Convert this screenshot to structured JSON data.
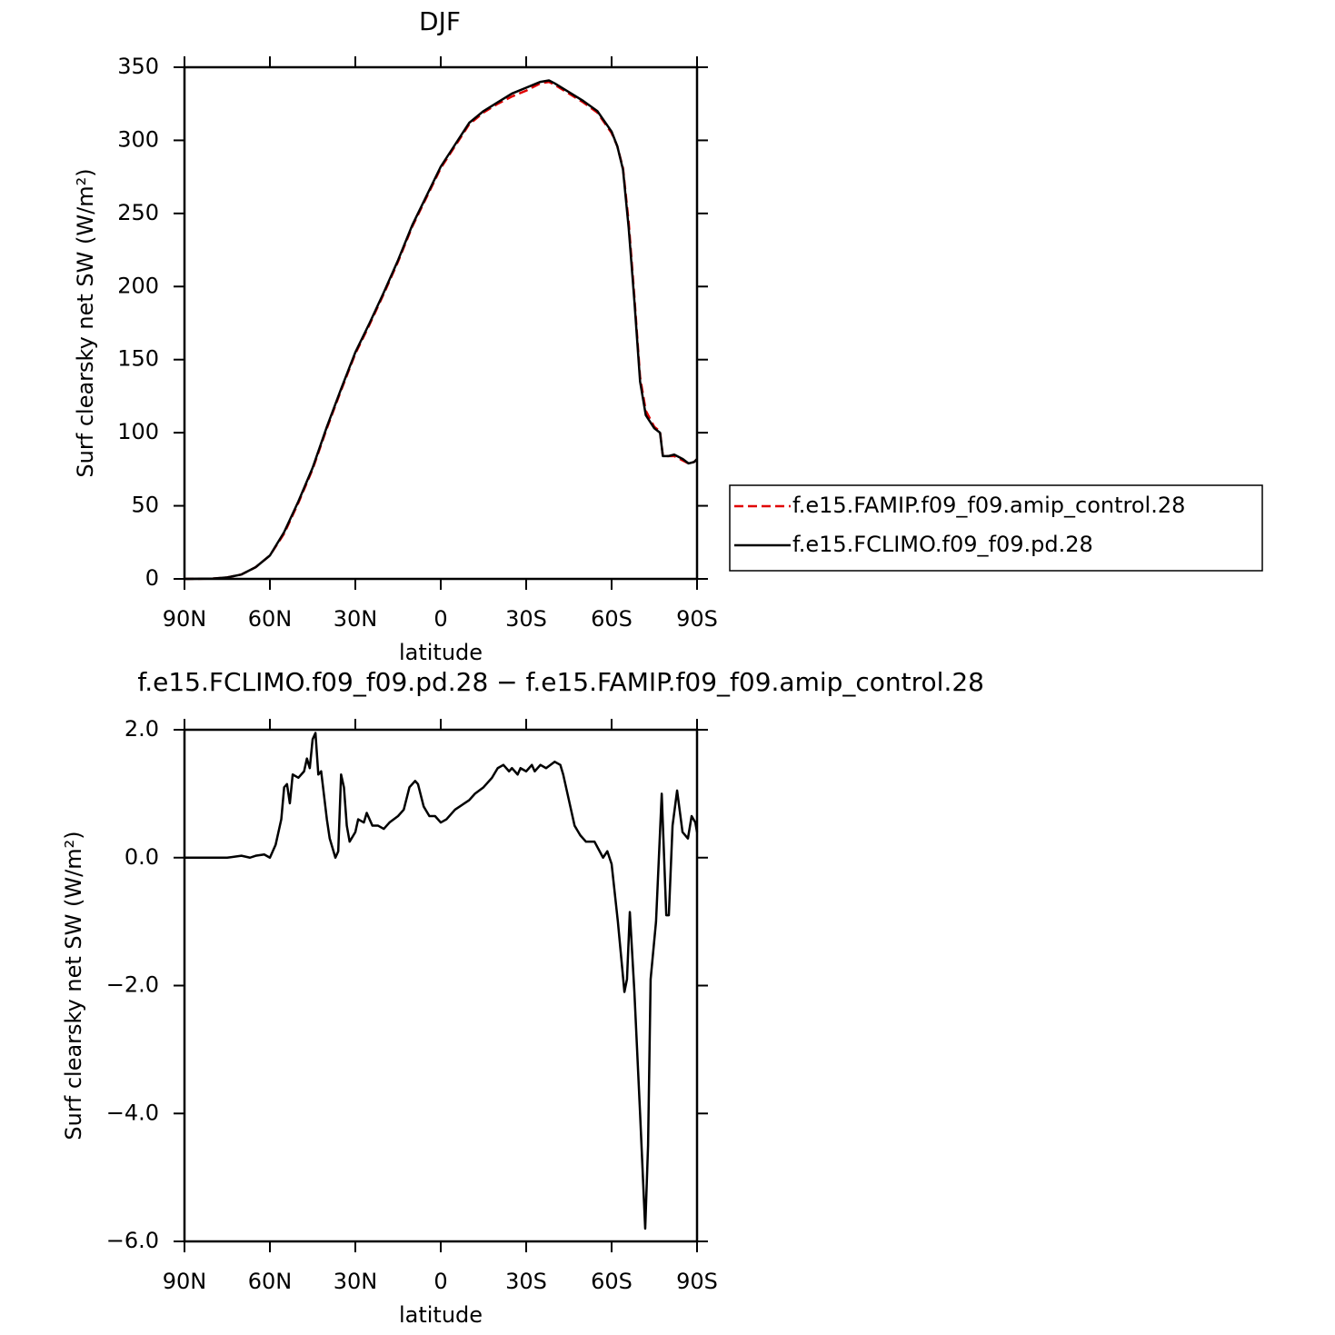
{
  "chart_data": [
    {
      "type": "line",
      "title": "DJF",
      "xlabel": "latitude",
      "ylabel": "Surf clearsky net SW (W/m²)",
      "x": [
        90,
        80,
        75,
        70,
        65,
        60,
        55,
        50,
        45,
        40,
        35,
        30,
        25,
        20,
        15,
        10,
        5,
        0,
        -5,
        -10,
        -15,
        -20,
        -25,
        -30,
        -35,
        -38,
        -40,
        -45,
        -50,
        -55,
        -60,
        -62,
        -64,
        -66,
        -68,
        -70,
        -72,
        -75,
        -77,
        -78,
        -80,
        -82,
        -85,
        -87,
        -89,
        -90
      ],
      "series": [
        {
          "name": "f.e15.FAMIP.f09_f09.amip_control.28",
          "color": "#e00000",
          "line_style": "dashed",
          "values": [
            0,
            0.2,
            1,
            3,
            8,
            16,
            31,
            52,
            75,
            103,
            129,
            154,
            174,
            195,
            217,
            241,
            261,
            281,
            296,
            311,
            319,
            325,
            330,
            334,
            339,
            340,
            338,
            332,
            326,
            319,
            305,
            296,
            281,
            244,
            193,
            138,
            115,
            104,
            101,
            84,
            84,
            84,
            81,
            79,
            80,
            82
          ]
        },
        {
          "name": "f.e15.FCLIMO.f09_f09.pd.28",
          "color": "#000000",
          "line_style": "solid",
          "values": [
            0,
            0.2,
            1,
            3,
            8,
            16,
            32,
            53,
            76,
            104,
            130,
            155,
            175,
            196,
            218,
            242,
            262,
            282,
            297,
            312,
            320,
            326,
            332,
            336,
            340,
            341,
            339,
            333,
            327,
            320,
            306,
            296,
            280,
            240,
            190,
            135,
            112,
            103,
            100,
            84,
            84,
            85,
            82,
            79,
            80,
            82
          ]
        }
      ],
      "xlim": [
        90,
        -90
      ],
      "xticks": [
        {
          "value": 90,
          "label": "90N"
        },
        {
          "value": 60,
          "label": "60N"
        },
        {
          "value": 30,
          "label": "30N"
        },
        0,
        {
          "value": -30,
          "label": "30S"
        },
        {
          "value": -60,
          "label": "60S"
        },
        {
          "value": -90,
          "label": "90S"
        }
      ],
      "ylim": [
        0,
        350
      ],
      "yticks": [
        0,
        50,
        100,
        150,
        200,
        250,
        300,
        350
      ],
      "legend": "right"
    },
    {
      "type": "line",
      "title": "f.e15.FCLIMO.f09_f09.pd.28 − f.e15.FAMIP.f09_f09.amip_control.28",
      "xlabel": "latitude",
      "ylabel": "Surf clearsky net SW (W/m²)",
      "x": [
        90,
        80,
        75,
        70,
        67,
        65,
        62,
        60,
        58,
        56,
        55,
        54,
        53,
        52,
        50,
        48,
        47,
        46,
        45,
        44,
        43,
        42,
        40,
        39,
        37,
        36,
        35,
        34,
        33,
        32,
        30,
        29,
        27,
        26,
        24,
        22,
        20,
        18,
        15,
        13,
        11,
        9,
        8,
        6,
        4,
        2,
        0,
        -2,
        -5,
        -10,
        -12,
        -15,
        -18,
        -20,
        -22,
        -24,
        -25,
        -27,
        -28,
        -30,
        -32,
        -33,
        -35,
        -37,
        -40,
        -42,
        -43,
        -45,
        -47,
        -49,
        -51,
        -54,
        -57,
        -58.5,
        -60,
        -62.2,
        -64.5,
        -65.4,
        -66.4,
        -68,
        -70,
        -71.8,
        -72.8,
        -73.7,
        -75.6,
        -77.6,
        -79.2,
        -80.1,
        -81.4,
        -83,
        -84.9,
        -86.8,
        -88.1,
        -89.4,
        -90
      ],
      "series": [
        {
          "color": "#000000",
          "line_style": "solid",
          "values": [
            0,
            0,
            0,
            0.03,
            0,
            0.03,
            0.05,
            0,
            0.2,
            0.6,
            1.1,
            1.15,
            0.85,
            1.3,
            1.25,
            1.35,
            1.55,
            1.4,
            1.85,
            1.95,
            1.3,
            1.35,
            0.6,
            0.3,
            0,
            0.1,
            1.3,
            1.1,
            0.5,
            0.25,
            0.4,
            0.6,
            0.55,
            0.7,
            0.5,
            0.5,
            0.45,
            0.55,
            0.65,
            0.75,
            1.1,
            1.2,
            1.15,
            0.8,
            0.65,
            0.65,
            0.55,
            0.6,
            0.75,
            0.9,
            1.0,
            1.1,
            1.25,
            1.4,
            1.45,
            1.35,
            1.4,
            1.3,
            1.4,
            1.35,
            1.45,
            1.35,
            1.45,
            1.4,
            1.5,
            1.45,
            1.3,
            0.9,
            0.5,
            0.35,
            0.25,
            0.25,
            0.0,
            0.1,
            -0.1,
            -1.0,
            -2.1,
            -1.9,
            -0.85,
            -2.1,
            -4.0,
            -5.8,
            -4.5,
            -1.9,
            -1.0,
            1.0,
            -0.9,
            -0.9,
            0.5,
            1.05,
            0.4,
            0.3,
            0.65,
            0.55,
            0.4
          ]
        }
      ],
      "xlim": [
        90,
        -90
      ],
      "xticks": [
        {
          "value": 90,
          "label": "90N"
        },
        {
          "value": 60,
          "label": "60N"
        },
        {
          "value": 30,
          "label": "30N"
        },
        0,
        {
          "value": -30,
          "label": "30S"
        },
        {
          "value": -60,
          "label": "60S"
        },
        {
          "value": -90,
          "label": "90S"
        }
      ],
      "ylim": [
        -6,
        2
      ],
      "yticks": [
        {
          "value": -6,
          "label": "−6.0"
        },
        {
          "value": -4,
          "label": "−4.0"
        },
        {
          "value": -2,
          "label": "−2.0"
        },
        {
          "value": 0,
          "label": "0.0"
        },
        {
          "value": 2,
          "label": "2.0"
        }
      ]
    }
  ]
}
